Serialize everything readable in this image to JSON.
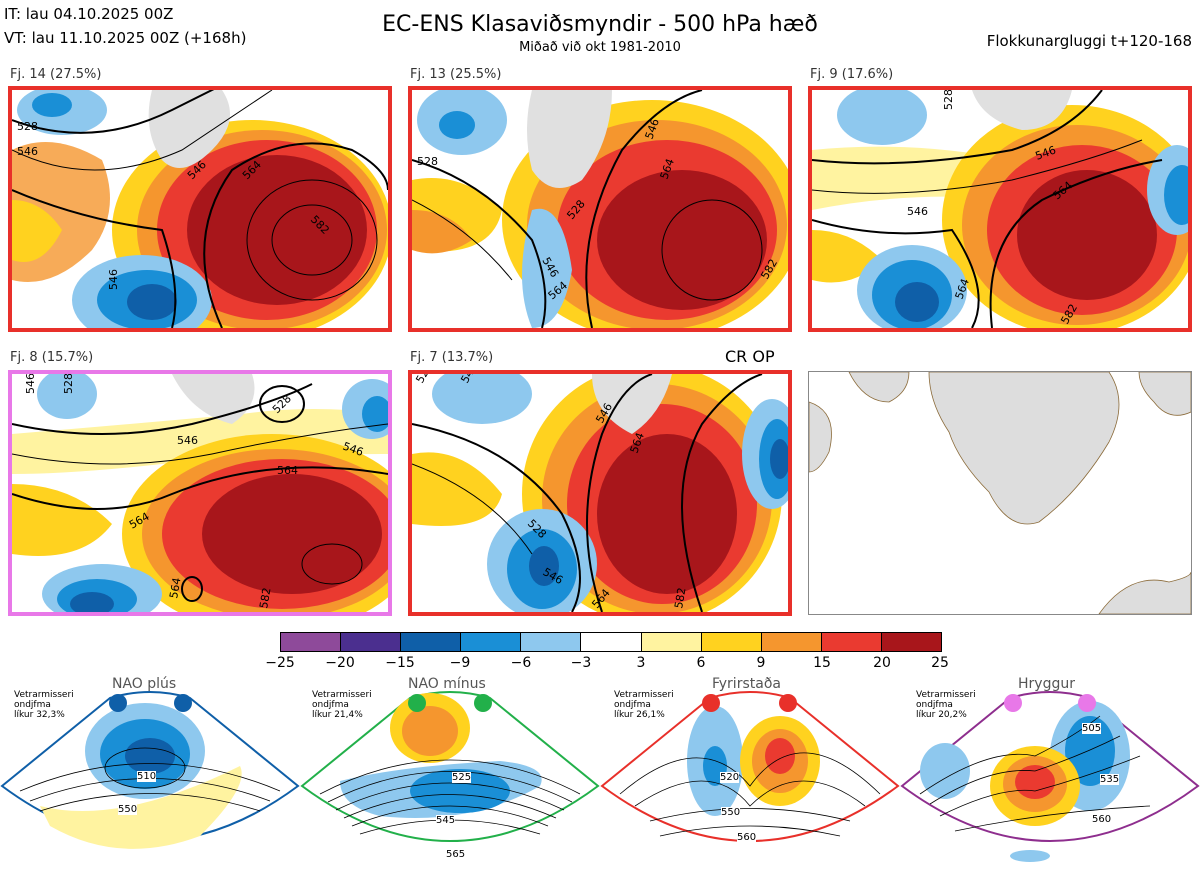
{
  "header": {
    "it_line": "IT: lau 04.10.2025 00Z",
    "vt_line": "VT: lau 11.10.2025 00Z  (+168h)",
    "title": "EC-ENS Klasaviðsmyndir - 500 hPa hæð",
    "subtitle": "Miðað við okt 1981-2010",
    "window": "Flokkunargluggi t+120-168"
  },
  "panels": [
    {
      "label": "Fj. 14 (27.5%)",
      "border": "#e8302a",
      "contours": [
        "528",
        "546",
        "564",
        "582",
        "546",
        "564"
      ]
    },
    {
      "label": "Fj. 13 (25.5%)",
      "border": "#e8302a",
      "contours": [
        "528",
        "546",
        "564",
        "528",
        "546",
        "564",
        "582"
      ]
    },
    {
      "label": "Fj. 9 (17.6%)",
      "border": "#e8302a",
      "contours": [
        "528",
        "546",
        "564",
        "546",
        "564",
        "582"
      ]
    },
    {
      "label": "Fj. 8 (15.7%)",
      "border": "#e878e8",
      "contours": [
        "546",
        "528",
        "546",
        "564",
        "564",
        "564",
        "582"
      ]
    },
    {
      "label": "Fj. 7 (13.7%)",
      "border": "#e8302a",
      "contours": [
        "528",
        "546",
        "564",
        "528",
        "546",
        "564",
        "582"
      ]
    }
  ],
  "cr_op": "CR OP",
  "colorbar": {
    "ticks": [
      "−25",
      "−20",
      "−15",
      "−9",
      "−6",
      "−3",
      "3",
      "6",
      "9",
      "15",
      "20",
      "25"
    ],
    "colors": [
      "#8e4a9a",
      "#4b2f8f",
      "#0f5fa8",
      "#1a8fd6",
      "#8ec8ee",
      "#ffffff",
      "#fff3a0",
      "#ffd21f",
      "#f5962e",
      "#ea3a30",
      "#a8161b"
    ]
  },
  "regimes": [
    {
      "name": "NAO plús",
      "text": [
        "Vetrarmisseri",
        "ondjfma",
        "líkur 32,3%"
      ],
      "color": "#0f5fa8",
      "labels": [
        "510",
        "550"
      ]
    },
    {
      "name": "NAO mínus",
      "text": [
        "Vetrarmisseri",
        "ondjfma",
        "líkur 21,4%"
      ],
      "color": "#22b04a",
      "labels": [
        "525",
        "545",
        "565"
      ]
    },
    {
      "name": "Fyrirstaða",
      "text": [
        "Vetrarmisseri",
        "ondjfma",
        "líkur 26,1%"
      ],
      "color": "#e8302a",
      "labels": [
        "520",
        "550",
        "560"
      ]
    },
    {
      "name": "Hryggur",
      "text": [
        "Vetrarmisseri",
        "ondjfma",
        "líkur 20,2%"
      ],
      "color": "#e878e8",
      "labels": [
        "505",
        "535",
        "560"
      ]
    }
  ]
}
